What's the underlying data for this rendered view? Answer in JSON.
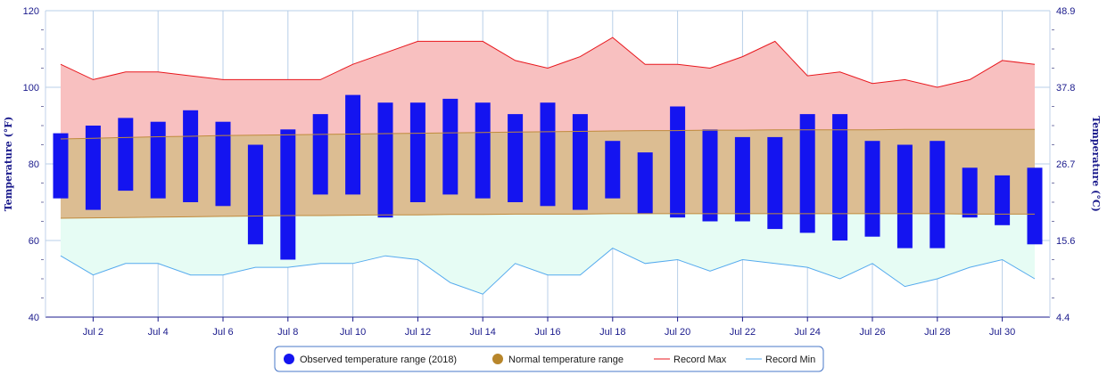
{
  "chart_data": {
    "type": "bar",
    "x": [
      "Jul 1",
      "Jul 2",
      "Jul 3",
      "Jul 4",
      "Jul 5",
      "Jul 6",
      "Jul 7",
      "Jul 8",
      "Jul 9",
      "Jul 10",
      "Jul 11",
      "Jul 12",
      "Jul 13",
      "Jul 14",
      "Jul 15",
      "Jul 16",
      "Jul 17",
      "Jul 18",
      "Jul 19",
      "Jul 20",
      "Jul 21",
      "Jul 22",
      "Jul 23",
      "Jul 24",
      "Jul 25",
      "Jul 26",
      "Jul 27",
      "Jul 28",
      "Jul 29",
      "Jul 30",
      "Jul 31"
    ],
    "x_tick_labels": [
      "Jul 2",
      "Jul 4",
      "Jul 6",
      "Jul 8",
      "Jul 10",
      "Jul 12",
      "Jul 14",
      "Jul 16",
      "Jul 18",
      "Jul 20",
      "Jul 22",
      "Jul 24",
      "Jul 26",
      "Jul 28",
      "Jul 30"
    ],
    "ylabel_left": "Temperature (°F)",
    "ylabel_right": "Temperature (°C)",
    "ylim": [
      40,
      120
    ],
    "y_ticks_left": [
      "40",
      "60",
      "80",
      "100",
      "120"
    ],
    "y_ticks_right": [
      "4.4",
      "15.6",
      "26.7",
      "37.8",
      "48.9"
    ],
    "grid": true,
    "legend_position": "bottom-center",
    "series": [
      {
        "name": "Observed temperature range (2018)",
        "kind": "range-bar",
        "color": "#1414f0",
        "low": [
          71,
          68,
          73,
          71,
          70,
          69,
          59,
          55,
          72,
          72,
          66,
          70,
          72,
          71,
          70,
          69,
          68,
          71,
          67,
          66,
          65,
          65,
          63,
          62,
          60,
          61,
          58,
          58,
          66,
          64,
          59
        ],
        "high": [
          88,
          90,
          92,
          91,
          94,
          91,
          85,
          89,
          93,
          98,
          96,
          96,
          97,
          96,
          93,
          96,
          93,
          86,
          83,
          95,
          89,
          87,
          87,
          93,
          93,
          86,
          85,
          86,
          79,
          77,
          79
        ]
      },
      {
        "name": "Normal temperature range",
        "kind": "band",
        "color": "#b8862b",
        "low": [
          65.8,
          65.9,
          66.0,
          66.1,
          66.2,
          66.3,
          66.4,
          66.5,
          66.5,
          66.6,
          66.7,
          66.7,
          66.8,
          66.8,
          66.9,
          66.9,
          66.9,
          67.0,
          67.0,
          67.0,
          67.0,
          67.0,
          67.0,
          67.0,
          67.0,
          67.0,
          67.0,
          67.0,
          66.9,
          66.9,
          66.9
        ],
        "high": [
          86.5,
          86.7,
          86.9,
          87.1,
          87.2,
          87.4,
          87.5,
          87.6,
          87.7,
          87.8,
          87.9,
          88.0,
          88.1,
          88.2,
          88.3,
          88.4,
          88.5,
          88.6,
          88.7,
          88.7,
          88.8,
          88.8,
          88.9,
          88.9,
          88.9,
          88.9,
          89.0,
          89.0,
          89.0,
          89.0,
          89.0
        ]
      },
      {
        "name": "Record Max",
        "kind": "line",
        "color": "#e8171d",
        "values": [
          106,
          102,
          104,
          104,
          103,
          102,
          102,
          102,
          102,
          106,
          109,
          112,
          112,
          112,
          107,
          105,
          108,
          113,
          106,
          106,
          105,
          108,
          112,
          103,
          104,
          101,
          102,
          100,
          102,
          107,
          106
        ]
      },
      {
        "name": "Record Min",
        "kind": "line",
        "color": "#55aaee",
        "values": [
          56,
          51,
          54,
          54,
          51,
          51,
          53,
          53,
          54,
          54,
          56,
          55,
          49,
          46,
          54,
          51,
          51,
          58,
          54,
          55,
          52,
          55,
          54,
          53,
          50,
          54,
          48,
          50,
          53,
          55,
          50
        ]
      }
    ]
  },
  "colors": {
    "axis_text": "#1a1a8c",
    "grid": "#b8cfe8",
    "record_fill": "#f8c0c0",
    "normal_fill": "#dcbd92",
    "cold_fill": "#e6fcf4",
    "legend_border": "#4a78c8"
  }
}
